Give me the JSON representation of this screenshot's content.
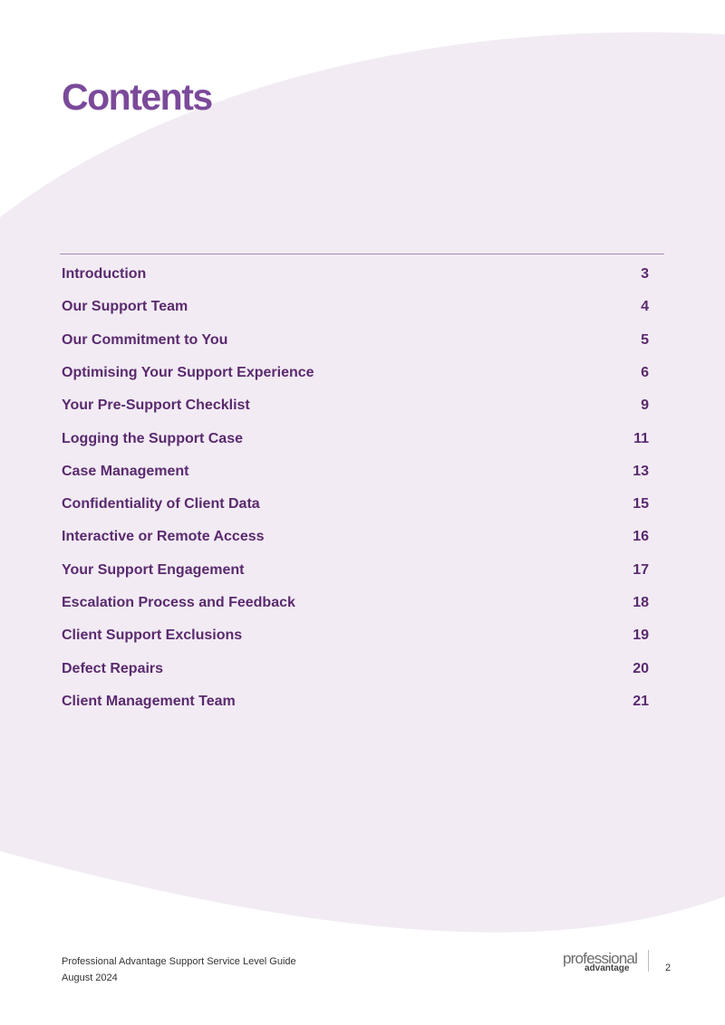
{
  "header": {
    "title": "Contents"
  },
  "toc": [
    {
      "title": "Introduction",
      "page": "3"
    },
    {
      "title": "Our Support Team",
      "page": "4"
    },
    {
      "title": "Our Commitment to You",
      "page": "5"
    },
    {
      "title": "Optimising Your Support Experience",
      "page": "6"
    },
    {
      "title": "Your Pre-Support Checklist",
      "page": "9"
    },
    {
      "title": "Logging the Support Case",
      "page": "11"
    },
    {
      "title": "Case Management",
      "page": "13"
    },
    {
      "title": "Confidentiality of Client Data",
      "page": "15"
    },
    {
      "title": "Interactive or Remote Access",
      "page": "16"
    },
    {
      "title": "Your Support Engagement",
      "page": "17"
    },
    {
      "title": "Escalation Process and Feedback",
      "page": "18"
    },
    {
      "title": "Client Support Exclusions",
      "page": "19"
    },
    {
      "title": "Defect Repairs",
      "page": "20"
    },
    {
      "title": "Client Management Team",
      "page": "21"
    }
  ],
  "footer": {
    "document": "Professional Advantage Support Service Level Guide",
    "date": "August 2024",
    "logo_top": "professional",
    "logo_bottom": "advantage",
    "page_number": "2"
  }
}
